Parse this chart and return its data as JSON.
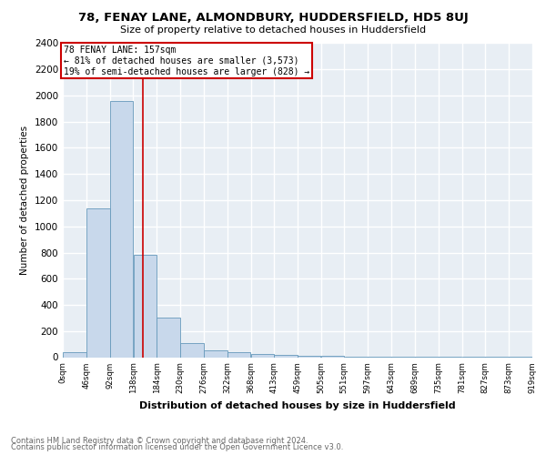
{
  "title": "78, FENAY LANE, ALMONDBURY, HUDDERSFIELD, HD5 8UJ",
  "subtitle": "Size of property relative to detached houses in Huddersfield",
  "xlabel": "Distribution of detached houses by size in Huddersfield",
  "ylabel": "Number of detached properties",
  "footnote1": "Contains HM Land Registry data © Crown copyright and database right 2024.",
  "footnote2": "Contains public sector information licensed under the Open Government Licence v3.0.",
  "bar_edges": [
    0,
    46,
    92,
    138,
    184,
    230,
    276,
    322,
    368,
    413,
    459,
    505,
    551,
    597,
    643,
    689,
    735,
    781,
    827,
    873,
    919
  ],
  "bar_values": [
    35,
    1140,
    1960,
    780,
    305,
    108,
    50,
    35,
    22,
    15,
    12,
    8,
    5,
    3,
    2,
    2,
    1,
    1,
    1,
    1
  ],
  "bar_color": "#c8d8eb",
  "bar_edge_color": "#6699bb",
  "property_size": 157,
  "vline_color": "#cc0000",
  "annotation_title": "78 FENAY LANE: 157sqm",
  "annotation_line1": "← 81% of detached houses are smaller (3,573)",
  "annotation_line2": "19% of semi-detached houses are larger (828) →",
  "annotation_box_color": "#cc0000",
  "background_color": "#e8eef4",
  "ylim": [
    0,
    2400
  ],
  "yticks": [
    0,
    200,
    400,
    600,
    800,
    1000,
    1200,
    1400,
    1600,
    1800,
    2000,
    2200,
    2400
  ]
}
